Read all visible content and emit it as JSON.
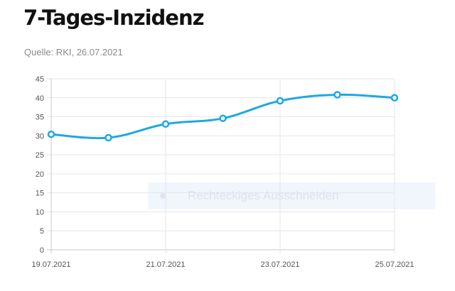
{
  "header": {
    "title": "7-Tages-Inzidenz",
    "source": "Quelle: RKI, 26.07.2021"
  },
  "overlay": {
    "label": "Rechteckiges Ausschneiden"
  },
  "colors": {
    "line": "#1fa8e0",
    "grid": "#e6e6e6",
    "axis": "#c8c8c8",
    "tick_text": "#555555"
  },
  "chart_data": {
    "type": "line",
    "x": [
      "19.07.2021",
      "20.07.2021",
      "21.07.2021",
      "22.07.2021",
      "23.07.2021",
      "24.07.2021",
      "25.07.2021"
    ],
    "series": [
      {
        "values": [
          30.4,
          29.5,
          33.1,
          34.6,
          39.2,
          40.8,
          40.0
        ]
      }
    ],
    "x_tick_labels": [
      "19.07.2021",
      "21.07.2021",
      "23.07.2021",
      "25.07.2021"
    ],
    "ylim": [
      0,
      45
    ],
    "y_ticks": [
      0,
      5,
      10,
      15,
      20,
      25,
      30,
      35,
      40,
      45
    ],
    "grid": true,
    "smooth": true
  }
}
